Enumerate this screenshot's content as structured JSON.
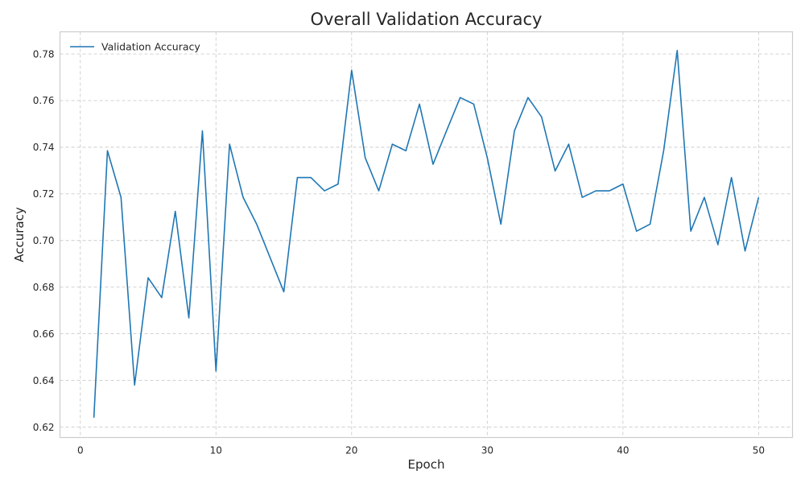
{
  "chart_data": {
    "type": "line",
    "title": "Overall Validation Accuracy",
    "xlabel": "Epoch",
    "ylabel": "Accuracy",
    "xlim": [
      -1.5,
      52.5
    ],
    "ylim": [
      0.6155,
      0.7895
    ],
    "xticks": [
      0,
      10,
      20,
      30,
      40,
      50
    ],
    "yticks": [
      0.62,
      0.64,
      0.66,
      0.68,
      0.7,
      0.72,
      0.74,
      0.76,
      0.78
    ],
    "ytick_labels": [
      "0.62",
      "0.64",
      "0.66",
      "0.68",
      "0.70",
      "0.72",
      "0.74",
      "0.76",
      "0.78"
    ],
    "xtick_labels": [
      "0",
      "10",
      "20",
      "30",
      "40",
      "50"
    ],
    "grid": true,
    "legend_position": "top-left",
    "series": [
      {
        "name": "Validation Accuracy",
        "color": "#1f77b4",
        "x": [
          1,
          2,
          3,
          4,
          5,
          6,
          7,
          8,
          9,
          10,
          11,
          12,
          13,
          14,
          15,
          16,
          17,
          18,
          19,
          20,
          21,
          22,
          23,
          24,
          25,
          26,
          27,
          28,
          29,
          30,
          31,
          32,
          33,
          34,
          35,
          36,
          37,
          38,
          39,
          40,
          41,
          42,
          43,
          44,
          45,
          46,
          47,
          48,
          49,
          50
        ],
        "y": [
          0.624,
          0.7385,
          0.7185,
          0.638,
          0.684,
          0.6755,
          0.7125,
          0.6668,
          0.747,
          0.644,
          0.7413,
          0.7185,
          0.707,
          0.6925,
          0.678,
          0.727,
          0.727,
          0.7213,
          0.7242,
          0.773,
          0.7355,
          0.7213,
          0.7413,
          0.7385,
          0.7585,
          0.7327,
          0.7471,
          0.7613,
          0.7585,
          0.7355,
          0.707,
          0.747,
          0.7613,
          0.753,
          0.7298,
          0.7413,
          0.7185,
          0.7213,
          0.7213,
          0.7242,
          0.704,
          0.707,
          0.7385,
          0.7815,
          0.704,
          0.7185,
          0.6982,
          0.727,
          0.6955,
          0.7185
        ]
      }
    ]
  }
}
